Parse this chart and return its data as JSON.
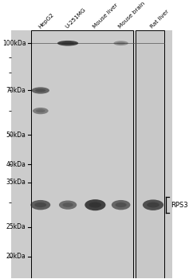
{
  "background_color": "#d8d8d8",
  "blot_bg": "#d0d0d0",
  "panel_bg": "#cccccc",
  "fig_bg": "#ffffff",
  "marker_labels": [
    "100kDa",
    "70kDa",
    "50kDa",
    "40kDa",
    "35kDa",
    "25kDa",
    "20kDa"
  ],
  "marker_positions": [
    100,
    70,
    50,
    40,
    35,
    25,
    20
  ],
  "ymin": 17,
  "ymax": 110,
  "lane_labels": [
    "HepG2",
    "U-251MG",
    "Mouse liver",
    "Mouse brain",
    "Rat liver"
  ],
  "annotation": "RPS3"
}
